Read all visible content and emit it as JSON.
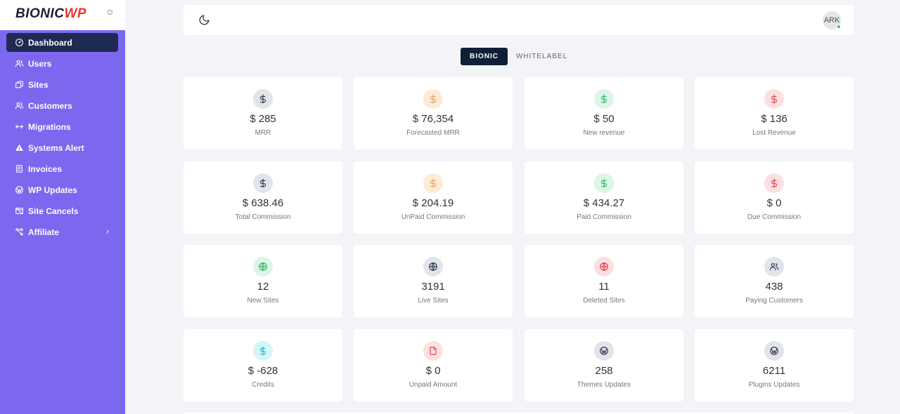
{
  "brand": {
    "part1": "BIONIC",
    "part2": "WP"
  },
  "colors": {
    "sidebar": "#7b68ee",
    "active_nav": "#1f2a52",
    "tab_active": "#0f1f36",
    "online": "#27c26c"
  },
  "sidebar": {
    "items": [
      {
        "label": "Dashboard",
        "icon": "dashboard-icon",
        "active": true
      },
      {
        "label": "Users",
        "icon": "users-icon"
      },
      {
        "label": "Sites",
        "icon": "sites-icon"
      },
      {
        "label": "Customers",
        "icon": "customers-icon"
      },
      {
        "label": "Migrations",
        "icon": "arrows-icon"
      },
      {
        "label": "Systems Alert",
        "icon": "warning-icon"
      },
      {
        "label": "Invoices",
        "icon": "invoice-icon"
      },
      {
        "label": "WP Updates",
        "icon": "wordpress-icon"
      },
      {
        "label": "Site Cancels",
        "icon": "site-cancel-icon"
      },
      {
        "label": "Affiliate",
        "icon": "affiliate-icon",
        "has_submenu": true
      }
    ]
  },
  "header": {
    "avatar_initials": "ARK",
    "theme_icon": "moon-icon"
  },
  "tabs": [
    {
      "label": "BIONIC",
      "active": true
    },
    {
      "label": "WHITELABEL",
      "active": false
    }
  ],
  "stats": [
    {
      "value": "$ 285",
      "label": "MRR",
      "icon": "dollar-icon",
      "color": "slate"
    },
    {
      "value": "$ 76,354",
      "label": "Forecasted MRR",
      "icon": "dollar-icon",
      "color": "orange"
    },
    {
      "value": "$ 50",
      "label": "New revenue",
      "icon": "dollar-icon",
      "color": "green"
    },
    {
      "value": "$ 136",
      "label": "Lost Revenue",
      "icon": "dollar-icon",
      "color": "red"
    },
    {
      "value": "$ 638.46",
      "label": "Total Commission",
      "icon": "dollar-icon",
      "color": "slate"
    },
    {
      "value": "$ 204.19",
      "label": "UnPaid Commission",
      "icon": "dollar-icon",
      "color": "orange"
    },
    {
      "value": "$ 434.27",
      "label": "Paid Commission",
      "icon": "dollar-icon",
      "color": "green"
    },
    {
      "value": "$ 0",
      "label": "Due Commission",
      "icon": "dollar-icon",
      "color": "red"
    },
    {
      "value": "12",
      "label": "New Sites",
      "icon": "globe-icon",
      "color": "green"
    },
    {
      "value": "3191",
      "label": "Live Sites",
      "icon": "globe-icon",
      "color": "slate"
    },
    {
      "value": "11",
      "label": "Deleted Sites",
      "icon": "globe-icon",
      "color": "red"
    },
    {
      "value": "438",
      "label": "Paying Customers",
      "icon": "users-icon",
      "color": "slate"
    },
    {
      "value": "$ -628",
      "label": "Credits",
      "icon": "dollar-icon",
      "color": "cyan"
    },
    {
      "value": "$ 0",
      "label": "Unpaid Amount",
      "icon": "file-icon",
      "color": "red"
    },
    {
      "value": "258",
      "label": "Themes Updates",
      "icon": "wordpress-icon",
      "color": "slate"
    },
    {
      "value": "6211",
      "label": "Plugins Updates",
      "icon": "wordpress-icon",
      "color": "slate"
    }
  ]
}
